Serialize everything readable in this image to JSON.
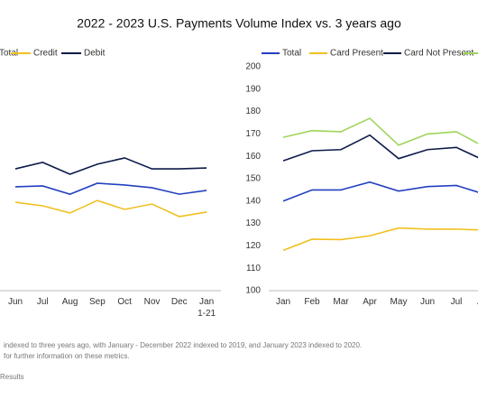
{
  "title": "2022 - 2023 U.S. Payments Volume Index vs. 3 years ago",
  "chart_data": [
    {
      "type": "line",
      "categories": [
        "Jun",
        "Jul",
        "Aug",
        "Sep",
        "Oct",
        "Nov",
        "Dec",
        "Jan\n1-21"
      ],
      "ylim": [
        100,
        200
      ],
      "series": [
        {
          "name": "Total",
          "color": "#2340c0",
          "values": [
            146.4,
            146.8,
            143.1,
            148.0,
            147.2,
            146.0,
            143.1,
            144.8
          ]
        },
        {
          "name": "Credit",
          "color": "#f0c020",
          "values": [
            139.5,
            137.9,
            134.7,
            140.3,
            136.3,
            138.7,
            133.1,
            135.1
          ]
        },
        {
          "name": "Debit",
          "color": "#0d1b4a",
          "values": [
            154.4,
            157.3,
            152.0,
            156.5,
            159.3,
            154.4,
            154.4,
            154.8
          ]
        }
      ]
    },
    {
      "type": "line",
      "categories": [
        "Jan",
        "Feb",
        "Mar",
        "Apr",
        "May",
        "Jun",
        "Jul",
        "Aug"
      ],
      "ylim": [
        100,
        200
      ],
      "yticks": [
        100,
        110,
        120,
        130,
        140,
        150,
        160,
        170,
        180,
        190,
        200
      ],
      "series": [
        {
          "name": "Total",
          "color": "#2340c0",
          "values": [
            140,
            145,
            145,
            148.5,
            144.5,
            146.5,
            147,
            143
          ]
        },
        {
          "name": "Card Present",
          "color": "#f0c020",
          "values": [
            118,
            123,
            122.8,
            124.5,
            128,
            127.5,
            127.5,
            127
          ]
        },
        {
          "name": "Card Not Present",
          "color": "#0d1b4a",
          "values": [
            158,
            162.5,
            163,
            169.5,
            159,
            163,
            164,
            158
          ]
        },
        {
          "color": "#9fd45c",
          "values": [
            168.5,
            171.5,
            171,
            177,
            165,
            170,
            171,
            164
          ]
        }
      ]
    }
  ],
  "notes": [
    "indexed to three years ago, with January - December 2022 indexed to 2019, and January 2023 indexed to 2020.",
    "for further information on these metrics.",
    "Results"
  ]
}
